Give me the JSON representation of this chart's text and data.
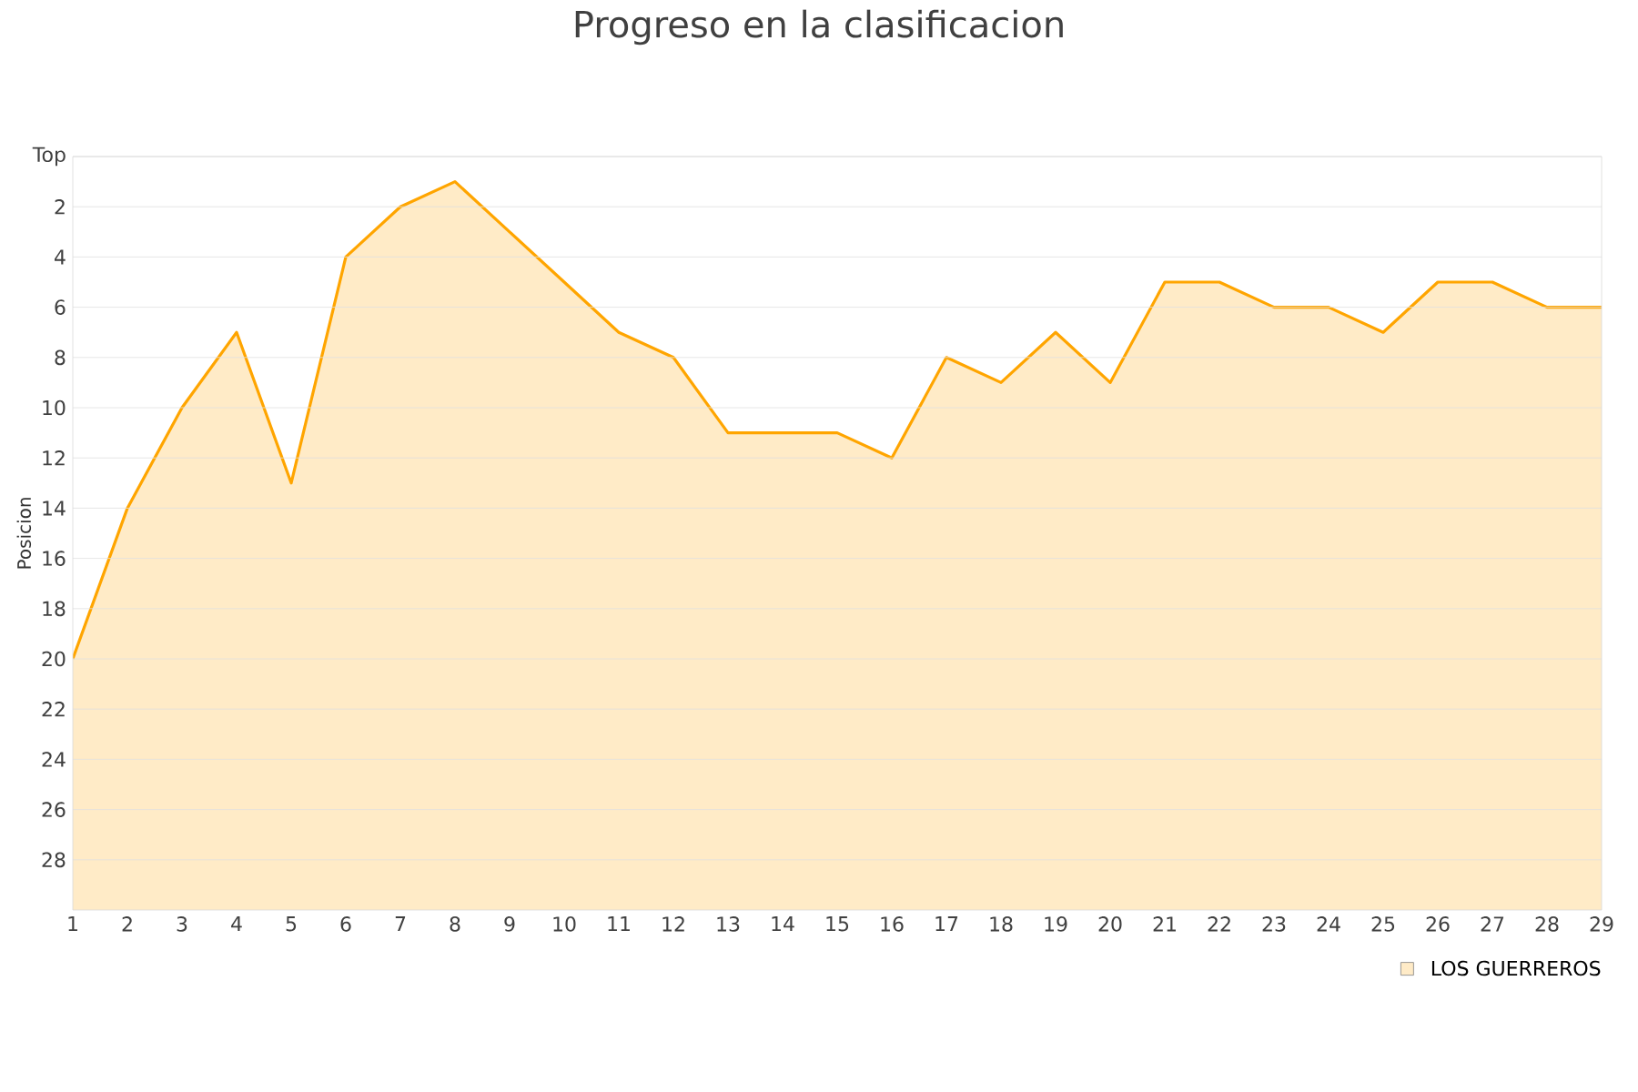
{
  "chart_data": {
    "type": "area",
    "title": "Progreso en la clasificacion",
    "ylabel": "Posicion",
    "x": [
      1,
      2,
      3,
      4,
      5,
      6,
      7,
      8,
      9,
      10,
      11,
      12,
      13,
      14,
      15,
      16,
      17,
      18,
      19,
      20,
      21,
      22,
      23,
      24,
      25,
      26,
      27,
      28,
      29
    ],
    "series": [
      {
        "name": "LOS GUERREROS",
        "color": "#ffa500",
        "values": [
          20,
          14,
          10,
          7,
          13,
          4,
          2,
          1,
          3,
          5,
          7,
          8,
          11,
          11,
          11,
          12,
          8,
          9,
          7,
          9,
          5,
          5,
          6,
          6,
          7,
          5,
          5,
          6,
          6
        ]
      }
    ],
    "xlim": [
      1,
      29
    ],
    "xticks": [
      1,
      2,
      3,
      4,
      5,
      6,
      7,
      8,
      9,
      10,
      11,
      12,
      13,
      14,
      15,
      16,
      17,
      18,
      19,
      20,
      21,
      22,
      23,
      24,
      25,
      26,
      27,
      28,
      29
    ],
    "ylim": [
      30,
      0
    ],
    "yticks": [
      {
        "value": 0,
        "label": "Top"
      },
      2,
      4,
      6,
      8,
      10,
      12,
      14,
      16,
      18,
      20,
      22,
      24,
      26,
      28
    ],
    "grid": "y",
    "legend": "bottom right"
  }
}
